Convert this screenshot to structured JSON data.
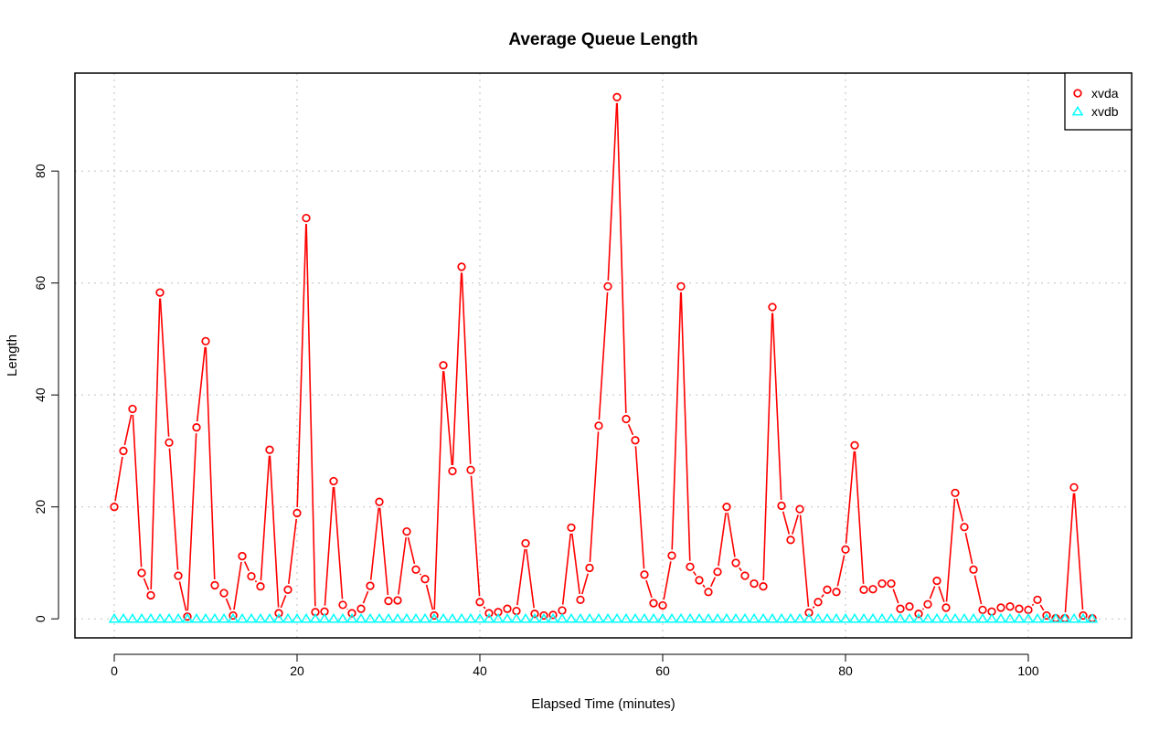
{
  "chart_data": {
    "type": "line",
    "title": "Average Queue Length",
    "xlabel": "Elapsed Time (minutes)",
    "ylabel": "Length",
    "xlim": [
      -4.3,
      111.3
    ],
    "ylim": [
      -3.4,
      97.5
    ],
    "x_ticks": [
      "0",
      "20",
      "40",
      "60",
      "80",
      "100"
    ],
    "y_ticks": [
      "0",
      "20",
      "40",
      "60",
      "80"
    ],
    "grid": true,
    "legend_position": "top-right",
    "x": [
      0,
      1,
      2,
      3,
      4,
      5,
      6,
      7,
      8,
      9,
      10,
      11,
      12,
      13,
      14,
      15,
      16,
      17,
      18,
      19,
      20,
      21,
      22,
      23,
      24,
      25,
      26,
      27,
      28,
      29,
      30,
      31,
      32,
      33,
      34,
      35,
      36,
      37,
      38,
      39,
      40,
      41,
      42,
      43,
      44,
      45,
      46,
      47,
      48,
      49,
      50,
      51,
      52,
      53,
      54,
      55,
      56,
      57,
      58,
      59,
      60,
      61,
      62,
      63,
      64,
      65,
      66,
      67,
      68,
      69,
      70,
      71,
      72,
      73,
      74,
      75,
      76,
      77,
      78,
      79,
      80,
      81,
      82,
      83,
      84,
      85,
      86,
      87,
      88,
      89,
      90,
      91,
      92,
      93,
      94,
      95,
      96,
      97,
      98,
      99,
      100,
      101,
      102,
      103,
      104,
      105,
      106,
      107
    ],
    "series": [
      {
        "name": "xvda",
        "color": "#ff0000",
        "marker": "circle",
        "values": [
          20.0,
          30.0,
          37.5,
          8.2,
          4.2,
          58.3,
          31.5,
          7.7,
          0.4,
          34.2,
          49.6,
          6.0,
          4.6,
          0.6,
          11.2,
          7.6,
          5.8,
          30.2,
          1.0,
          5.2,
          18.9,
          71.6,
          1.2,
          1.3,
          24.6,
          2.5,
          1.0,
          1.8,
          5.9,
          20.9,
          3.2,
          3.3,
          15.6,
          8.8,
          7.1,
          0.6,
          45.3,
          26.4,
          62.9,
          26.6,
          3.0,
          1.0,
          1.2,
          1.8,
          1.4,
          13.5,
          0.9,
          0.6,
          0.7,
          1.5,
          16.3,
          3.4,
          9.1,
          34.5,
          59.4,
          93.2,
          35.7,
          31.9,
          7.9,
          2.8,
          2.4,
          11.3,
          59.4,
          9.3,
          6.9,
          4.8,
          8.4,
          20.0,
          10.0,
          7.7,
          6.3,
          5.8,
          55.7,
          20.2,
          14.1,
          19.6,
          1.1,
          3.0,
          5.2,
          4.8,
          12.4,
          31.0,
          5.2,
          5.3,
          6.3,
          6.3,
          1.8,
          2.2,
          0.9,
          2.6,
          6.8,
          2.0,
          22.5,
          16.4,
          8.8,
          1.6,
          1.3,
          2.0,
          2.2,
          1.8,
          1.6,
          3.4,
          0.6,
          0.1,
          0.1,
          23.5,
          0.6,
          0.1
        ]
      },
      {
        "name": "xvdb",
        "color": "#00ffff",
        "marker": "triangle",
        "values": [
          0,
          0,
          0,
          0,
          0,
          0,
          0,
          0,
          0,
          0,
          0,
          0,
          0,
          0,
          0,
          0,
          0,
          0,
          0,
          0,
          0,
          0,
          0,
          0,
          0,
          0,
          0,
          0,
          0,
          0,
          0,
          0,
          0,
          0,
          0,
          0,
          0,
          0,
          0,
          0,
          0,
          0,
          0,
          0,
          0,
          0,
          0,
          0,
          0,
          0,
          0,
          0,
          0,
          0,
          0,
          0,
          0,
          0,
          0,
          0,
          0,
          0,
          0,
          0,
          0,
          0,
          0,
          0,
          0,
          0,
          0,
          0,
          0,
          0,
          0,
          0,
          0,
          0,
          0,
          0,
          0,
          0,
          0,
          0,
          0,
          0,
          0,
          0,
          0,
          0,
          0,
          0,
          0,
          0,
          0,
          0,
          0,
          0,
          0,
          0,
          0,
          0,
          0,
          0,
          0,
          0,
          0,
          0
        ]
      }
    ]
  }
}
